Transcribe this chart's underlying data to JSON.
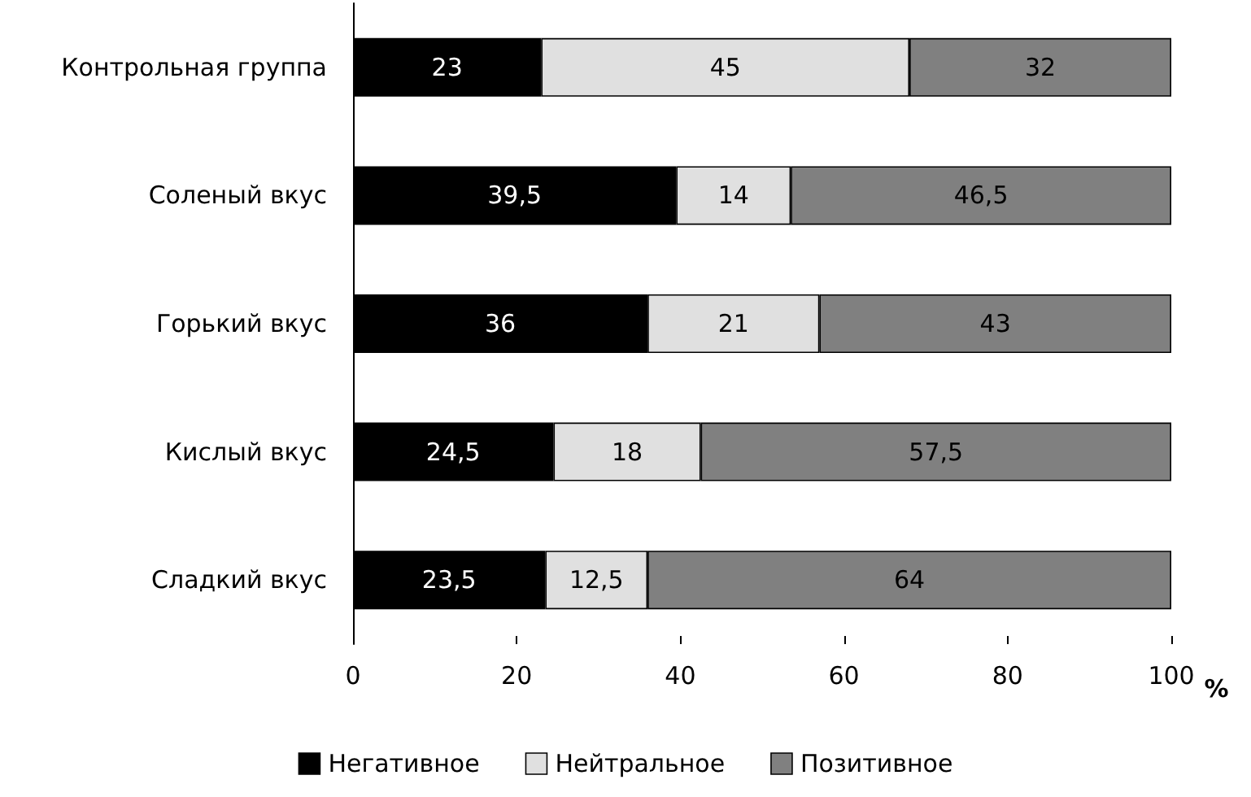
{
  "chart_data": {
    "type": "bar",
    "orientation": "horizontal",
    "stacked": true,
    "xlabel": "%",
    "categories": [
      "Контрольная группа",
      "Соленый вкус",
      "Горький вкус",
      "Кислый вкус",
      "Сладкий вкус"
    ],
    "series": [
      {
        "name": "Негативное",
        "color": "#000000",
        "values": [
          23,
          39.5,
          36,
          24.5,
          23.5
        ],
        "value_labels": [
          "23",
          "39,5",
          "36",
          "24,5",
          "23,5"
        ]
      },
      {
        "name": "Нейтральное",
        "color": "#e0e0e0",
        "values": [
          45,
          14,
          21,
          18,
          12.5
        ],
        "value_labels": [
          "45",
          "14",
          "21",
          "18",
          "12,5"
        ]
      },
      {
        "name": "Позитивное",
        "color": "#808080",
        "values": [
          32,
          46.5,
          43,
          57.5,
          64
        ],
        "value_labels": [
          "32",
          "46,5",
          "43",
          "57,5",
          "64"
        ]
      }
    ],
    "xlim": [
      0,
      100
    ],
    "xticks": [
      0,
      20,
      40,
      60,
      80,
      100
    ],
    "grid": false,
    "legend": "bottom"
  }
}
